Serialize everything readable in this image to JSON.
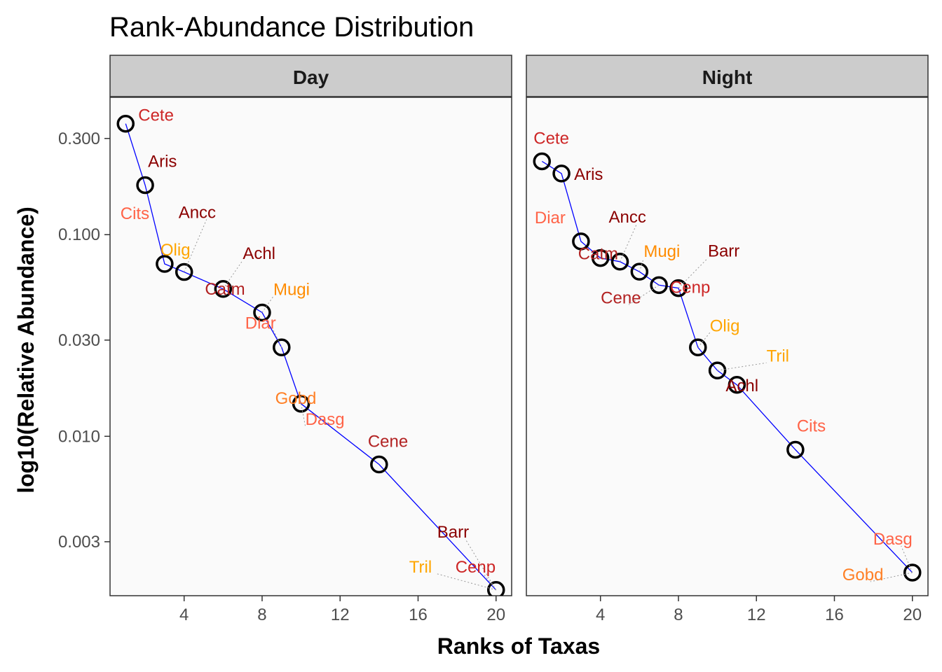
{
  "chart_data": {
    "type": "scatter",
    "title": "Rank-Abundance Distribution",
    "xlabel": "Ranks of Taxas",
    "ylabel": "log10(Relative Abundance)",
    "x_scale": "linear",
    "y_scale": "log10",
    "xlim": [
      0.2,
      20.8
    ],
    "ylim": [
      0.00162,
      0.48
    ],
    "x_ticks": [
      4,
      8,
      12,
      16,
      20
    ],
    "y_ticks": [
      0.003,
      0.01,
      0.03,
      0.1,
      0.3
    ],
    "y_tick_labels": [
      "0.003",
      "0.010",
      "0.030",
      "0.100",
      "0.300"
    ],
    "panels": [
      {
        "name": "Day",
        "points": [
          {
            "rank": 1,
            "abundance": 0.355,
            "label": "Cete"
          },
          {
            "rank": 2,
            "abundance": 0.176,
            "label": "Aris"
          },
          {
            "rank": 3,
            "abundance": 0.0716,
            "label": "Olig"
          },
          {
            "rank": 4,
            "abundance": 0.0653,
            "label": "Ancc"
          },
          {
            "rank": 6,
            "abundance": 0.0538,
            "label": "Achl"
          },
          {
            "rank": 6,
            "abundance": 0.0538,
            "label": "Catm"
          },
          {
            "rank": 8,
            "abundance": 0.0411,
            "label": "Mugi"
          },
          {
            "rank": 9,
            "abundance": 0.0276,
            "label": "Diar"
          },
          {
            "rank": 10,
            "abundance": 0.0145,
            "label": "Dasg"
          },
          {
            "rank": 10,
            "abundance": 0.0145,
            "label": "Gobd"
          },
          {
            "rank": 14,
            "abundance": 0.00725,
            "label": "Cene"
          },
          {
            "rank": 20,
            "abundance": 0.00173,
            "label": "Barr"
          },
          {
            "rank": 20,
            "abundance": 0.00173,
            "label": "Cenp"
          },
          {
            "rank": 20,
            "abundance": 0.00173,
            "label": "Tril"
          },
          {
            "rank": 20,
            "abundance": 0.00173,
            "label": "Cits"
          }
        ]
      },
      {
        "name": "Night",
        "points": [
          {
            "rank": 1,
            "abundance": 0.231,
            "label": "Cete"
          },
          {
            "rank": 2,
            "abundance": 0.201,
            "label": "Aris"
          },
          {
            "rank": 3,
            "abundance": 0.0926,
            "label": "Diar"
          },
          {
            "rank": 4,
            "abundance": 0.0766,
            "label": "Catm"
          },
          {
            "rank": 5,
            "abundance": 0.0735,
            "label": "Ancc"
          },
          {
            "rank": 6,
            "abundance": 0.0655,
            "label": "Mugi"
          },
          {
            "rank": 7,
            "abundance": 0.0562,
            "label": "Cene"
          },
          {
            "rank": 8,
            "abundance": 0.0543,
            "label": "Cenp"
          },
          {
            "rank": 8,
            "abundance": 0.0543,
            "label": "Barr"
          },
          {
            "rank": 9,
            "abundance": 0.0276,
            "label": "Olig"
          },
          {
            "rank": 10,
            "abundance": 0.0212,
            "label": "Tril"
          },
          {
            "rank": 11,
            "abundance": 0.018,
            "label": "Achl"
          },
          {
            "rank": 14,
            "abundance": 0.00858,
            "label": "Cits"
          },
          {
            "rank": 20,
            "abundance": 0.00211,
            "label": "Dasg"
          },
          {
            "rank": 20,
            "abundance": 0.00211,
            "label": "Gobd"
          }
        ]
      }
    ],
    "label_colors": {
      "Cete": "#cd2626",
      "Aris": "#8b0000",
      "Olig": "#ffa500",
      "Ancc": "#8b0000",
      "Achl": "#8b0000",
      "Catm": "#b22222",
      "Mugi": "#ff8c00",
      "Diar": "#ff6347",
      "Dasg": "#ff6347",
      "Gobd": "#ff7f24",
      "Cene": "#b22222",
      "Barr": "#8b0000",
      "Cenp": "#cd2626",
      "Tril": "#ffa500",
      "Cits": "#ff6347"
    },
    "line_color": "#0000ff",
    "point_style": "open-circle-black",
    "panel_background": "#fafafa",
    "strip_background": "#cccccc",
    "grid": false,
    "legend": "none"
  }
}
